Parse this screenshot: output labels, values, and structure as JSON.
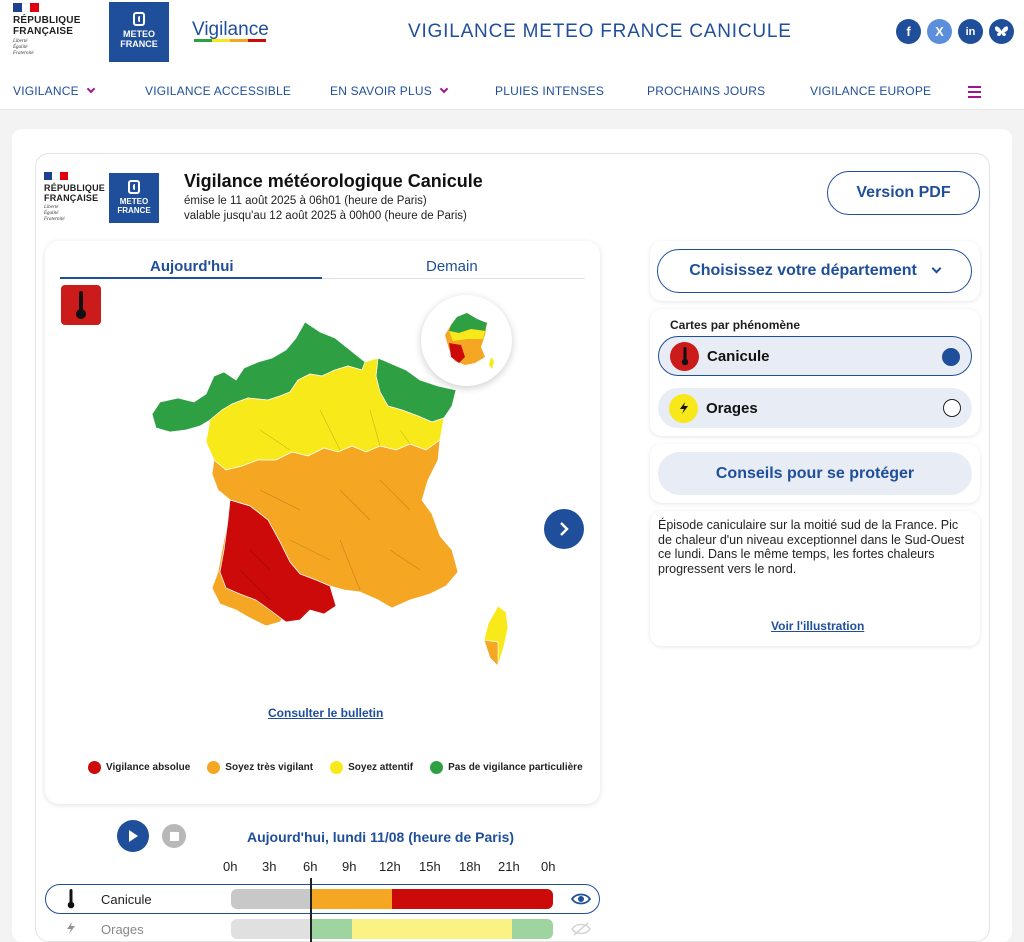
{
  "header": {
    "republique": [
      "RÉPUBLIQUE",
      "FRANÇAISE"
    ],
    "motto": [
      "Liberté",
      "Égalité",
      "Fraternité"
    ],
    "meteo_logo": [
      "METEO",
      "FRANCE"
    ],
    "brand": "Vigilance",
    "site_title": "VIGILANCE METEO FRANCE CANICULE",
    "socials": [
      "facebook-icon",
      "x-icon",
      "linkedin-icon",
      "bluesky-icon"
    ]
  },
  "nav": {
    "items": [
      "VIGILANCE",
      "VIGILANCE ACCESSIBLE",
      "EN SAVOIR PLUS",
      "PLUIES INTENSES",
      "PROCHAINS JOURS",
      "VIGILANCE EUROPE"
    ]
  },
  "bulletin": {
    "title": "Vigilance météorologique Canicule",
    "issued": "émise le 11 août 2025 à 06h01 (heure de Paris)",
    "valid": "valable jusqu'au 12 août 2025 à 00h00 (heure de Paris)",
    "pdf_button": "Version PDF"
  },
  "map": {
    "tabs": [
      "Aujourd'hui",
      "Demain"
    ],
    "active_tab": "Aujourd'hui",
    "link_bulletin": "Consulter le bulletin",
    "legend": [
      {
        "label": "Vigilance absolue",
        "color": "#cc0a0a"
      },
      {
        "label": "Soyez très vigilant",
        "color": "#f5a623"
      },
      {
        "label": "Soyez attentif",
        "color": "#f8ea1a"
      },
      {
        "label": "Pas de vigilance particulière",
        "color": "#2ea043"
      }
    ]
  },
  "sidebar": {
    "department_button": "Choisissez votre département",
    "phenomena_title": "Cartes par phénomène",
    "phenomena": [
      {
        "label": "Canicule",
        "selected": true,
        "icon": "thermometer-icon"
      },
      {
        "label": "Orages",
        "selected": false,
        "icon": "lightning-icon"
      }
    ],
    "advice_button": "Conseils pour se protéger",
    "description": "Épisode caniculaire sur la moitié sud de la France. Pic de chaleur d'un niveau exceptionnel dans le Sud-Ouest ce lundi. Dans le même temps, les fortes chaleurs progressent vers le nord.",
    "illustration_link": "Voir l'illustration"
  },
  "timeline": {
    "title": "Aujourd'hui, lundi 11/08 (heure de Paris)",
    "hours": [
      "0h",
      "3h",
      "6h",
      "9h",
      "12h",
      "15h",
      "18h",
      "21h",
      "0h"
    ],
    "rows": [
      {
        "label": "Canicule",
        "active": true
      },
      {
        "label": "Orages",
        "active": false
      }
    ]
  },
  "colors": {
    "primary": "#1f4e9a",
    "accent": "#a0148c",
    "red": "#cc0a0a",
    "orange": "#f5a623",
    "yellow": "#f8ea1a",
    "green": "#2ea043"
  }
}
